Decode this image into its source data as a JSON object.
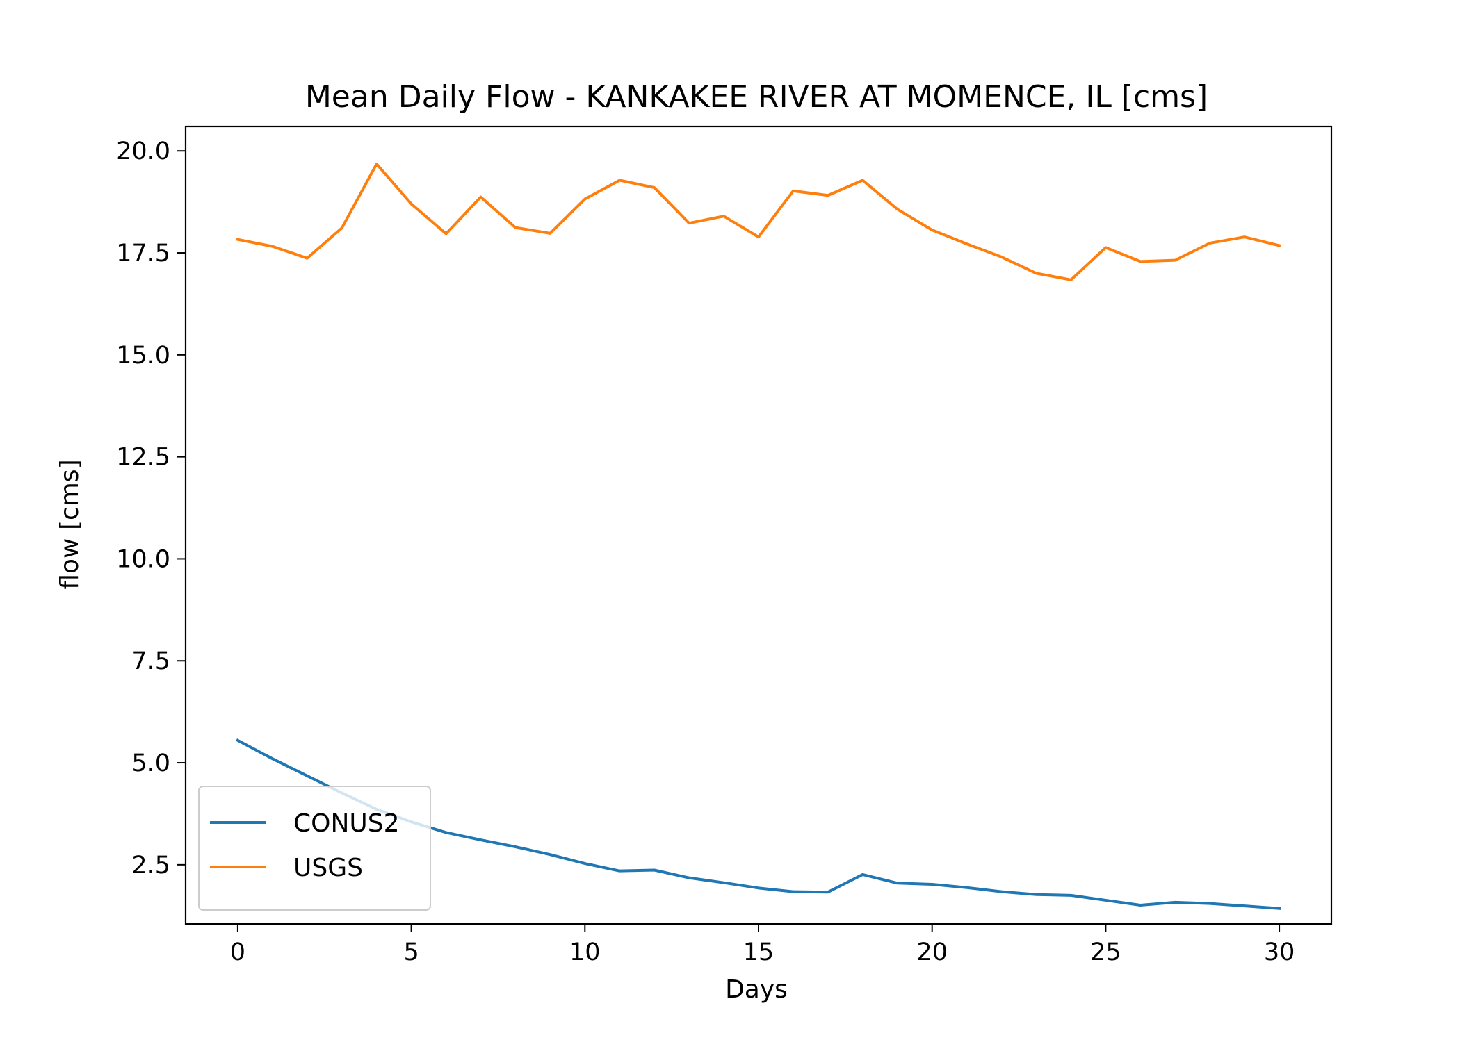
{
  "chart_data": {
    "type": "line",
    "title": "Mean Daily Flow - KANKAKEE RIVER AT MOMENCE, IL [cms]",
    "xlabel": "Days",
    "ylabel": "flow [cms]",
    "xlim": [
      -1.5,
      31.5
    ],
    "ylim": [
      1.05,
      20.6
    ],
    "xticks": [
      0,
      5,
      10,
      15,
      20,
      25,
      30
    ],
    "xtick_labels": [
      "0",
      "5",
      "10",
      "15",
      "20",
      "25",
      "30"
    ],
    "yticks": [
      2.5,
      5.0,
      7.5,
      10.0,
      12.5,
      15.0,
      17.5,
      20.0
    ],
    "ytick_labels": [
      "2.5",
      "5.0",
      "7.5",
      "10.0",
      "12.5",
      "15.0",
      "17.5",
      "20.0"
    ],
    "grid": false,
    "legend_position": "lower-left",
    "x": [
      0,
      1,
      2,
      3,
      4,
      5,
      6,
      7,
      8,
      9,
      10,
      11,
      12,
      13,
      14,
      15,
      16,
      17,
      18,
      19,
      20,
      21,
      22,
      23,
      24,
      25,
      26,
      27,
      28,
      29,
      30
    ],
    "series": [
      {
        "name": "CONUS2",
        "color": "#1f77b4",
        "values": [
          5.55,
          5.1,
          4.68,
          4.26,
          3.86,
          3.55,
          3.29,
          3.11,
          2.94,
          2.75,
          2.53,
          2.35,
          2.37,
          2.18,
          2.06,
          1.93,
          1.84,
          1.83,
          2.26,
          2.05,
          2.02,
          1.94,
          1.84,
          1.77,
          1.75,
          1.63,
          1.51,
          1.58,
          1.55,
          1.49,
          1.43
        ]
      },
      {
        "name": "USGS",
        "color": "#ff7f0e",
        "values": [
          17.83,
          17.66,
          17.37,
          18.11,
          19.68,
          18.7,
          17.97,
          18.87,
          18.12,
          17.98,
          18.82,
          19.28,
          19.1,
          18.23,
          18.4,
          17.89,
          19.02,
          18.91,
          19.28,
          18.57,
          18.06,
          17.72,
          17.4,
          17.0,
          16.84,
          17.63,
          17.29,
          17.32,
          17.74,
          17.89,
          17.68
        ]
      }
    ]
  }
}
